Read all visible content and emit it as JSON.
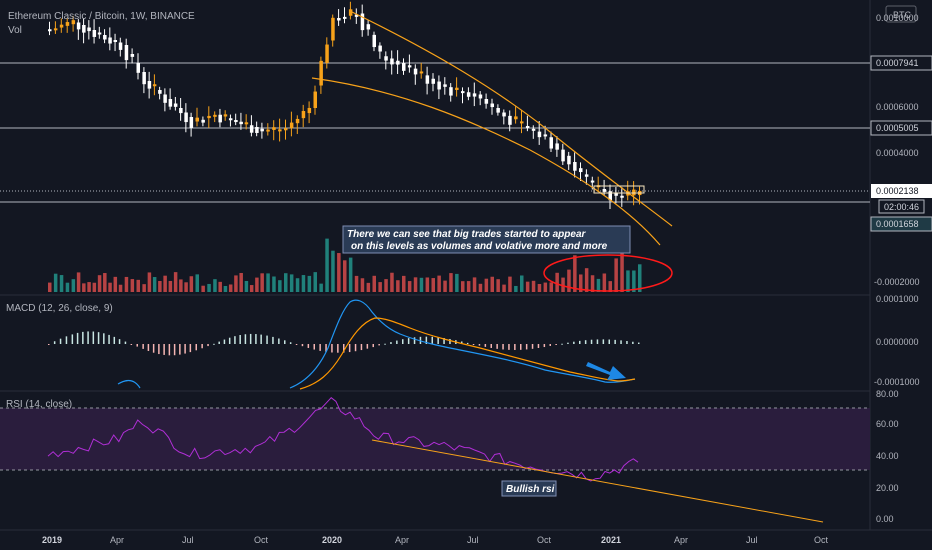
{
  "header": {
    "symbol_title": "Ethereum Classic / Bitcoin, 1W, BINANCE",
    "vol_label": "Vol",
    "currency_badge": "BTC"
  },
  "colors": {
    "background": "#131722",
    "up_candle": "#f7a21a",
    "down_candle": "#ffffff",
    "vol_up": "#26a69a",
    "vol_down": "#ef5350",
    "macd_line": "#2196f3",
    "signal_line": "#ff9800",
    "rsi_line": "#b02fd6",
    "rsi_band": "#2a1d3d",
    "trend_line": "#f7a21a",
    "highlight_ellipse": "#ff1a1a",
    "arrow": "#1e88e5"
  },
  "price_axis": {
    "labels": [
      "0.0010000",
      "0.0006000",
      "0.0004000",
      "-0.0002000"
    ],
    "level_tags": [
      "0.0007941",
      "0.0005005",
      "0.0001658"
    ],
    "last_price": "0.0002138",
    "countdown": "02:00:46"
  },
  "macd_pane": {
    "title": "MACD (12, 26, close, 9)",
    "axis_labels": [
      "0.0001000",
      "0.0000000",
      "-0.0001000"
    ]
  },
  "rsi_pane": {
    "title": "RSI (14, close)",
    "axis_labels": [
      "80.00",
      "60.00",
      "40.00",
      "20.00",
      "0.00"
    ]
  },
  "time_axis": {
    "labels": [
      "2019",
      "Apr",
      "Jul",
      "Oct",
      "2020",
      "Apr",
      "Jul",
      "Oct",
      "2021",
      "Apr",
      "Jul",
      "Oct"
    ]
  },
  "annotations": {
    "volume_note_line1": "There we can see that big trades started to appear",
    "volume_note_line2": "on this levels as volumes and volative more and more",
    "rsi_note": "Bullish rsi"
  },
  "chart_data": {
    "type": "candlestick",
    "interval": "1W",
    "price_levels": [
      0.0007941,
      0.0005005,
      0.0001658
    ],
    "last_close": 0.0002138,
    "price_range_visible": [
      -0.0002,
      0.001
    ],
    "rsi_bands": [
      70,
      30
    ],
    "price_series": [
      {
        "x": "2019-01",
        "close": 0.00095
      },
      {
        "x": "2019-02",
        "close": 0.00098
      },
      {
        "x": "2019-04",
        "close": 0.00088
      },
      {
        "x": "2019-05",
        "close": 0.00072
      },
      {
        "x": "2019-07",
        "close": 0.00054
      },
      {
        "x": "2019-08",
        "close": 0.00057
      },
      {
        "x": "2019-10",
        "close": 0.0005
      },
      {
        "x": "2019-11",
        "close": 0.00051
      },
      {
        "x": "2019-12",
        "close": 0.0006
      },
      {
        "x": "2020-01",
        "close": 0.001
      },
      {
        "x": "2020-02",
        "close": 0.00102
      },
      {
        "x": "2020-03",
        "close": 0.00083
      },
      {
        "x": "2020-04",
        "close": 0.00079
      },
      {
        "x": "2020-05",
        "close": 0.00073
      },
      {
        "x": "2020-06",
        "close": 0.00068
      },
      {
        "x": "2020-07",
        "close": 0.00066
      },
      {
        "x": "2020-08",
        "close": 0.00058
      },
      {
        "x": "2020-09",
        "close": 0.00052
      },
      {
        "x": "2020-10",
        "close": 0.00047
      },
      {
        "x": "2020-11",
        "close": 0.00036
      },
      {
        "x": "2020-12",
        "close": 0.00025
      },
      {
        "x": "2021-01",
        "close": 0.00021
      },
      {
        "x": "2021-02",
        "close": 0.000214
      }
    ],
    "rsi_series": [
      {
        "x": "2019-01",
        "rsi": 42
      },
      {
        "x": "2019-04",
        "rsi": 52
      },
      {
        "x": "2019-05",
        "rsi": 64
      },
      {
        "x": "2019-07",
        "rsi": 42
      },
      {
        "x": "2019-10",
        "rsi": 47
      },
      {
        "x": "2019-11",
        "rsi": 55
      },
      {
        "x": "2020-01",
        "rsi": 75
      },
      {
        "x": "2020-02",
        "rsi": 66
      },
      {
        "x": "2020-03",
        "rsi": 53
      },
      {
        "x": "2020-06",
        "rsi": 47
      },
      {
        "x": "2020-09",
        "rsi": 36
      },
      {
        "x": "2020-11",
        "rsi": 31
      },
      {
        "x": "2020-12",
        "rsi": 28
      },
      {
        "x": "2021-01",
        "rsi": 32
      },
      {
        "x": "2021-02",
        "rsi": 37
      }
    ]
  }
}
